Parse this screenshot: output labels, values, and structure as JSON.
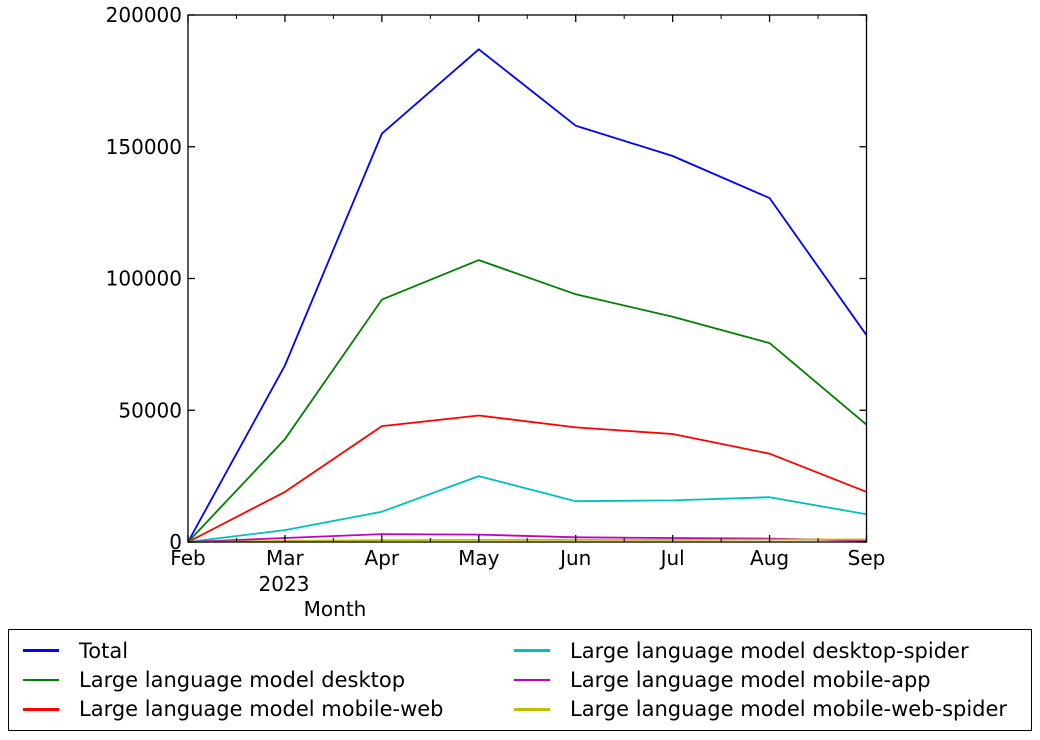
{
  "chart_data": {
    "type": "line",
    "title": "",
    "xlabel": "Month",
    "ylabel": "",
    "x_year_label": "2023",
    "x_year_under": "Mar",
    "x": [
      "Feb",
      "Mar",
      "Apr",
      "May",
      "Jun",
      "Jul",
      "Aug",
      "Sep"
    ],
    "y_ticks": [
      "0",
      "50000",
      "100000",
      "150000",
      "200000"
    ],
    "ylim": [
      0,
      200000
    ],
    "grid": false,
    "legend_position": "bottom",
    "legend_columns": 2,
    "axis_color": "#000000",
    "background_color": "#ffffff",
    "series": [
      {
        "name": "Total",
        "color": "#0000ff",
        "values": [
          0,
          67000,
          155000,
          187000,
          158000,
          146500,
          130500,
          78500
        ]
      },
      {
        "name": "Large language model desktop",
        "color": "#008000",
        "values": [
          0,
          39000,
          92000,
          107000,
          94000,
          85500,
          75500,
          44500
        ]
      },
      {
        "name": "Large language model mobile-web",
        "color": "#ff0000",
        "values": [
          0,
          19000,
          44000,
          48000,
          43500,
          41000,
          33500,
          19000
        ]
      },
      {
        "name": "Large language model desktop-spider",
        "color": "#00bfbf",
        "values": [
          0,
          4500,
          11500,
          25000,
          15500,
          15800,
          17000,
          10500
        ]
      },
      {
        "name": "Large language model mobile-app",
        "color": "#bf00bf",
        "values": [
          0,
          1500,
          3000,
          2800,
          1800,
          1500,
          1300,
          500
        ]
      },
      {
        "name": "Large language model mobile-web-spider",
        "color": "#bfbf00",
        "values": [
          0,
          400,
          700,
          800,
          800,
          800,
          900,
          1000
        ]
      }
    ]
  }
}
